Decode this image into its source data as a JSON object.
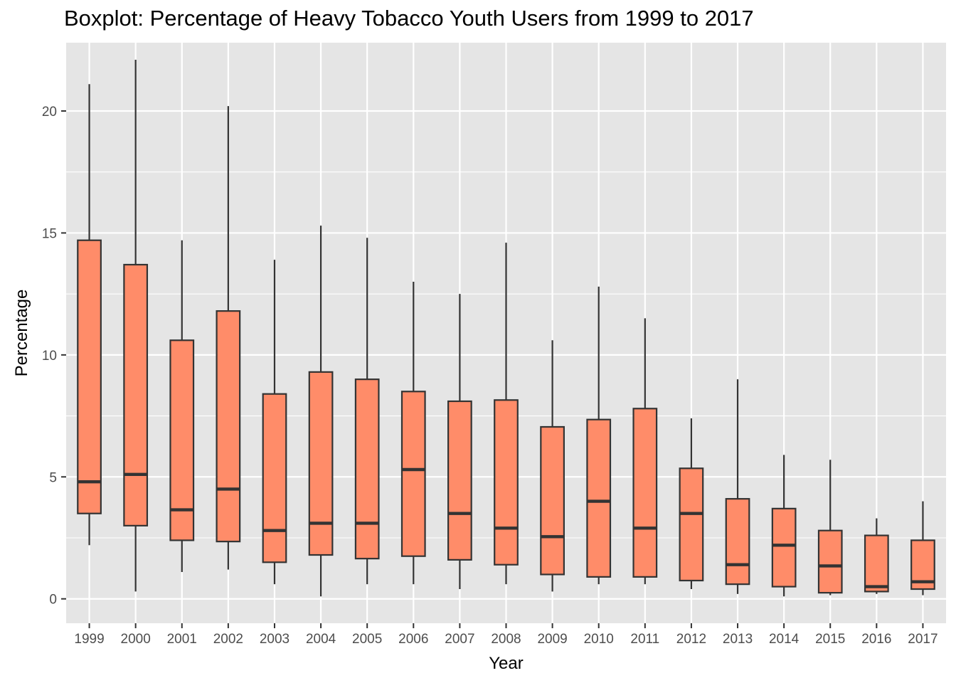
{
  "chart_data": {
    "type": "boxplot",
    "title": "Boxplot: Percentage of Heavy Tobacco Youth Users from 1999 to 2017",
    "xlabel": "Year",
    "ylabel": "Percentage",
    "ylim": [
      -1,
      22.8
    ],
    "yticks": [
      0,
      5,
      10,
      15,
      20
    ],
    "grid": true,
    "box_color": "#ff8c69",
    "line_color": "#333333",
    "panel_color": "#e5e5e5",
    "grid_color": "#ffffff",
    "categories": [
      "1999",
      "2000",
      "2001",
      "2002",
      "2003",
      "2004",
      "2005",
      "2006",
      "2007",
      "2008",
      "2009",
      "2010",
      "2011",
      "2012",
      "2013",
      "2014",
      "2015",
      "2016",
      "2017"
    ],
    "boxes": [
      {
        "x": "1999",
        "min": 2.2,
        "q1": 3.5,
        "median": 4.8,
        "q3": 14.7,
        "max": 21.1
      },
      {
        "x": "2000",
        "min": 0.3,
        "q1": 3.0,
        "median": 5.1,
        "q3": 13.7,
        "max": 22.1
      },
      {
        "x": "2001",
        "min": 1.1,
        "q1": 2.4,
        "median": 3.65,
        "q3": 10.6,
        "max": 14.7
      },
      {
        "x": "2002",
        "min": 1.2,
        "q1": 2.35,
        "median": 4.5,
        "q3": 11.8,
        "max": 20.2
      },
      {
        "x": "2003",
        "min": 0.6,
        "q1": 1.5,
        "median": 2.8,
        "q3": 8.4,
        "max": 13.9
      },
      {
        "x": "2004",
        "min": 0.1,
        "q1": 1.8,
        "median": 3.1,
        "q3": 9.3,
        "max": 15.3
      },
      {
        "x": "2005",
        "min": 0.6,
        "q1": 1.65,
        "median": 3.1,
        "q3": 9.0,
        "max": 14.8
      },
      {
        "x": "2006",
        "min": 0.6,
        "q1": 1.75,
        "median": 5.3,
        "q3": 8.5,
        "max": 13.0
      },
      {
        "x": "2007",
        "min": 0.4,
        "q1": 1.6,
        "median": 3.5,
        "q3": 8.1,
        "max": 12.5
      },
      {
        "x": "2008",
        "min": 0.6,
        "q1": 1.4,
        "median": 2.9,
        "q3": 8.15,
        "max": 14.6
      },
      {
        "x": "2009",
        "min": 0.3,
        "q1": 1.0,
        "median": 2.55,
        "q3": 7.05,
        "max": 10.6
      },
      {
        "x": "2010",
        "min": 0.6,
        "q1": 0.9,
        "median": 4.0,
        "q3": 7.35,
        "max": 12.8
      },
      {
        "x": "2011",
        "min": 0.6,
        "q1": 0.9,
        "median": 2.9,
        "q3": 7.8,
        "max": 11.5
      },
      {
        "x": "2012",
        "min": 0.4,
        "q1": 0.75,
        "median": 3.5,
        "q3": 5.35,
        "max": 7.4
      },
      {
        "x": "2013",
        "min": 0.2,
        "q1": 0.6,
        "median": 1.4,
        "q3": 4.1,
        "max": 9.0
      },
      {
        "x": "2014",
        "min": 0.1,
        "q1": 0.5,
        "median": 2.2,
        "q3": 3.7,
        "max": 5.9
      },
      {
        "x": "2015",
        "min": 0.15,
        "q1": 0.25,
        "median": 1.35,
        "q3": 2.8,
        "max": 5.7
      },
      {
        "x": "2016",
        "min": 0.2,
        "q1": 0.3,
        "median": 0.5,
        "q3": 2.6,
        "max": 3.3
      },
      {
        "x": "2017",
        "min": 0.15,
        "q1": 0.4,
        "median": 0.7,
        "q3": 2.4,
        "max": 4.0
      }
    ]
  }
}
